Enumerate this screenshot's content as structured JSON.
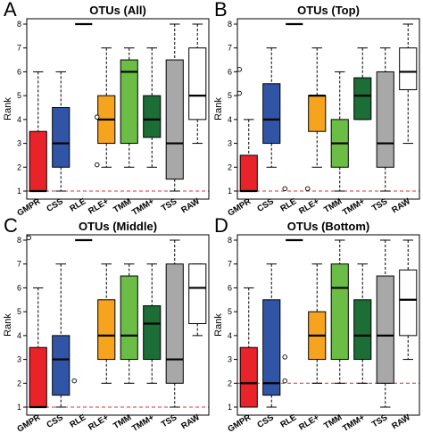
{
  "chart_data": [
    {
      "type": "box",
      "panel_label": "A",
      "title": "OTUs (All)",
      "ylabel": "Rank",
      "ylim": [
        1,
        8
      ],
      "yticks": [
        "1",
        "2",
        "3",
        "4",
        "5",
        "6",
        "7",
        "8"
      ],
      "reference_line": 1,
      "categories": [
        "GMPR",
        "CSS",
        "RLE",
        "RLE+",
        "TMM",
        "TMM+",
        "TSS",
        "RAW"
      ],
      "colors": [
        "#e8242a",
        "#3155a6",
        "#000000",
        "#f6a31e",
        "#6bbd45",
        "#1c6d36",
        "#a8a8a8",
        "#ffffff"
      ],
      "boxes": [
        {
          "min": 1,
          "q1": 1,
          "median": 1,
          "q3": 3.5,
          "max": 6,
          "outliers": []
        },
        {
          "min": 1,
          "q1": 2,
          "median": 3,
          "q3": 4.5,
          "max": 6,
          "outliers": []
        },
        {
          "min": 8,
          "q1": 8,
          "median": 8,
          "q3": 8,
          "max": 8,
          "outliers": []
        },
        {
          "min": 2,
          "q1": 3,
          "median": 4,
          "q3": 5,
          "max": 7,
          "outliers": [
            4.1,
            2.1
          ]
        },
        {
          "min": 2,
          "q1": 3,
          "median": 6,
          "q3": 6.5,
          "max": 7,
          "outliers": []
        },
        {
          "min": 2,
          "q1": 3.25,
          "median": 4,
          "q3": 5,
          "max": 7,
          "outliers": []
        },
        {
          "min": 1,
          "q1": 1.5,
          "median": 3,
          "q3": 6.5,
          "max": 8,
          "outliers": []
        },
        {
          "min": 3,
          "q1": 4,
          "median": 5,
          "q3": 7,
          "max": 8,
          "outliers": []
        }
      ]
    },
    {
      "type": "box",
      "panel_label": "B",
      "title": "OTUs (Top)",
      "ylabel": "Rank",
      "ylim": [
        1,
        8
      ],
      "yticks": [
        "1",
        "2",
        "3",
        "4",
        "5",
        "6",
        "7",
        "8"
      ],
      "reference_line": 1,
      "categories": [
        "GMPR",
        "CSS",
        "RLE",
        "RLE+",
        "TMM",
        "TMM+",
        "TSS",
        "RAW"
      ],
      "colors": [
        "#e8242a",
        "#3155a6",
        "#000000",
        "#f6a31e",
        "#6bbd45",
        "#1c6d36",
        "#a8a8a8",
        "#ffffff"
      ],
      "boxes": [
        {
          "min": 1,
          "q1": 1,
          "median": 1,
          "q3": 2.5,
          "max": 4,
          "outliers": [
            6.1,
            5.1
          ]
        },
        {
          "min": 2,
          "q1": 3,
          "median": 4,
          "q3": 5.5,
          "max": 7,
          "outliers": []
        },
        {
          "min": 8,
          "q1": 8,
          "median": 8,
          "q3": 8,
          "max": 8,
          "outliers": [
            1.1
          ]
        },
        {
          "min": 2,
          "q1": 3.5,
          "median": 5,
          "q3": 5,
          "max": 7,
          "outliers": [
            1.1
          ]
        },
        {
          "min": 1,
          "q1": 2,
          "median": 3,
          "q3": 4,
          "max": 6,
          "outliers": []
        },
        {
          "min": 4,
          "q1": 4,
          "median": 5,
          "q3": 5.75,
          "max": 7,
          "outliers": []
        },
        {
          "min": 1,
          "q1": 2,
          "median": 3,
          "q3": 6,
          "max": 7,
          "outliers": []
        },
        {
          "min": 3,
          "q1": 5.25,
          "median": 6,
          "q3": 7,
          "max": 8,
          "outliers": []
        }
      ]
    },
    {
      "type": "box",
      "panel_label": "C",
      "title": "OTUs (Middle)",
      "ylabel": "Rank",
      "ylim": [
        1,
        8
      ],
      "yticks": [
        "1",
        "2",
        "3",
        "4",
        "5",
        "6",
        "7",
        "8"
      ],
      "reference_line": 1,
      "categories": [
        "GMPR",
        "CSS",
        "RLE",
        "RLE+",
        "TMM",
        "TMM+",
        "TSS",
        "RAW"
      ],
      "colors": [
        "#e8242a",
        "#3155a6",
        "#000000",
        "#f6a31e",
        "#6bbd45",
        "#1c6d36",
        "#a8a8a8",
        "#ffffff"
      ],
      "boxes": [
        {
          "min": 1,
          "q1": 1,
          "median": 1,
          "q3": 3.5,
          "max": 6,
          "outliers": [
            8.1
          ]
        },
        {
          "min": 1,
          "q1": 1.5,
          "median": 3,
          "q3": 4,
          "max": 7,
          "outliers": []
        },
        {
          "min": 8,
          "q1": 8,
          "median": 8,
          "q3": 8,
          "max": 8,
          "outliers": [
            2.1
          ]
        },
        {
          "min": 2,
          "q1": 3,
          "median": 4,
          "q3": 5.5,
          "max": 7,
          "outliers": []
        },
        {
          "min": 2,
          "q1": 3,
          "median": 4,
          "q3": 6.5,
          "max": 7,
          "outliers": []
        },
        {
          "min": 2,
          "q1": 3,
          "median": 4.5,
          "q3": 5.25,
          "max": 7,
          "outliers": []
        },
        {
          "min": 1,
          "q1": 2,
          "median": 3,
          "q3": 7,
          "max": 8,
          "outliers": []
        },
        {
          "min": 4,
          "q1": 4.5,
          "median": 6,
          "q3": 7,
          "max": 7,
          "outliers": []
        }
      ]
    },
    {
      "type": "box",
      "panel_label": "D",
      "title": "OTUs (Bottom)",
      "ylabel": "Rank",
      "ylim": [
        1,
        8
      ],
      "yticks": [
        "1",
        "2",
        "3",
        "4",
        "5",
        "6",
        "7",
        "8"
      ],
      "reference_line": 2,
      "categories": [
        "GMPR",
        "CSS",
        "RLE",
        "RLE+",
        "TMM",
        "TMM+",
        "TSS",
        "RAW"
      ],
      "colors": [
        "#e8242a",
        "#3155a6",
        "#000000",
        "#f6a31e",
        "#6bbd45",
        "#1c6d36",
        "#a8a8a8",
        "#ffffff"
      ],
      "boxes": [
        {
          "min": 1,
          "q1": 1,
          "median": 2,
          "q3": 3.5,
          "max": 6,
          "outliers": []
        },
        {
          "min": 1,
          "q1": 1.5,
          "median": 2,
          "q3": 5.5,
          "max": 7,
          "outliers": []
        },
        {
          "min": 8,
          "q1": 8,
          "median": 8,
          "q3": 8,
          "max": 8,
          "outliers": [
            3.1,
            2.1
          ]
        },
        {
          "min": 2,
          "q1": 3,
          "median": 4,
          "q3": 5,
          "max": 7,
          "outliers": []
        },
        {
          "min": 2,
          "q1": 3,
          "median": 6,
          "q3": 7,
          "max": 8,
          "outliers": []
        },
        {
          "min": 2,
          "q1": 3,
          "median": 4,
          "q3": 5.5,
          "max": 7,
          "outliers": []
        },
        {
          "min": 1,
          "q1": 2,
          "median": 4,
          "q3": 6.5,
          "max": 8,
          "outliers": []
        },
        {
          "min": 3,
          "q1": 4,
          "median": 5.5,
          "q3": 6.75,
          "max": 8,
          "outliers": []
        }
      ]
    }
  ]
}
